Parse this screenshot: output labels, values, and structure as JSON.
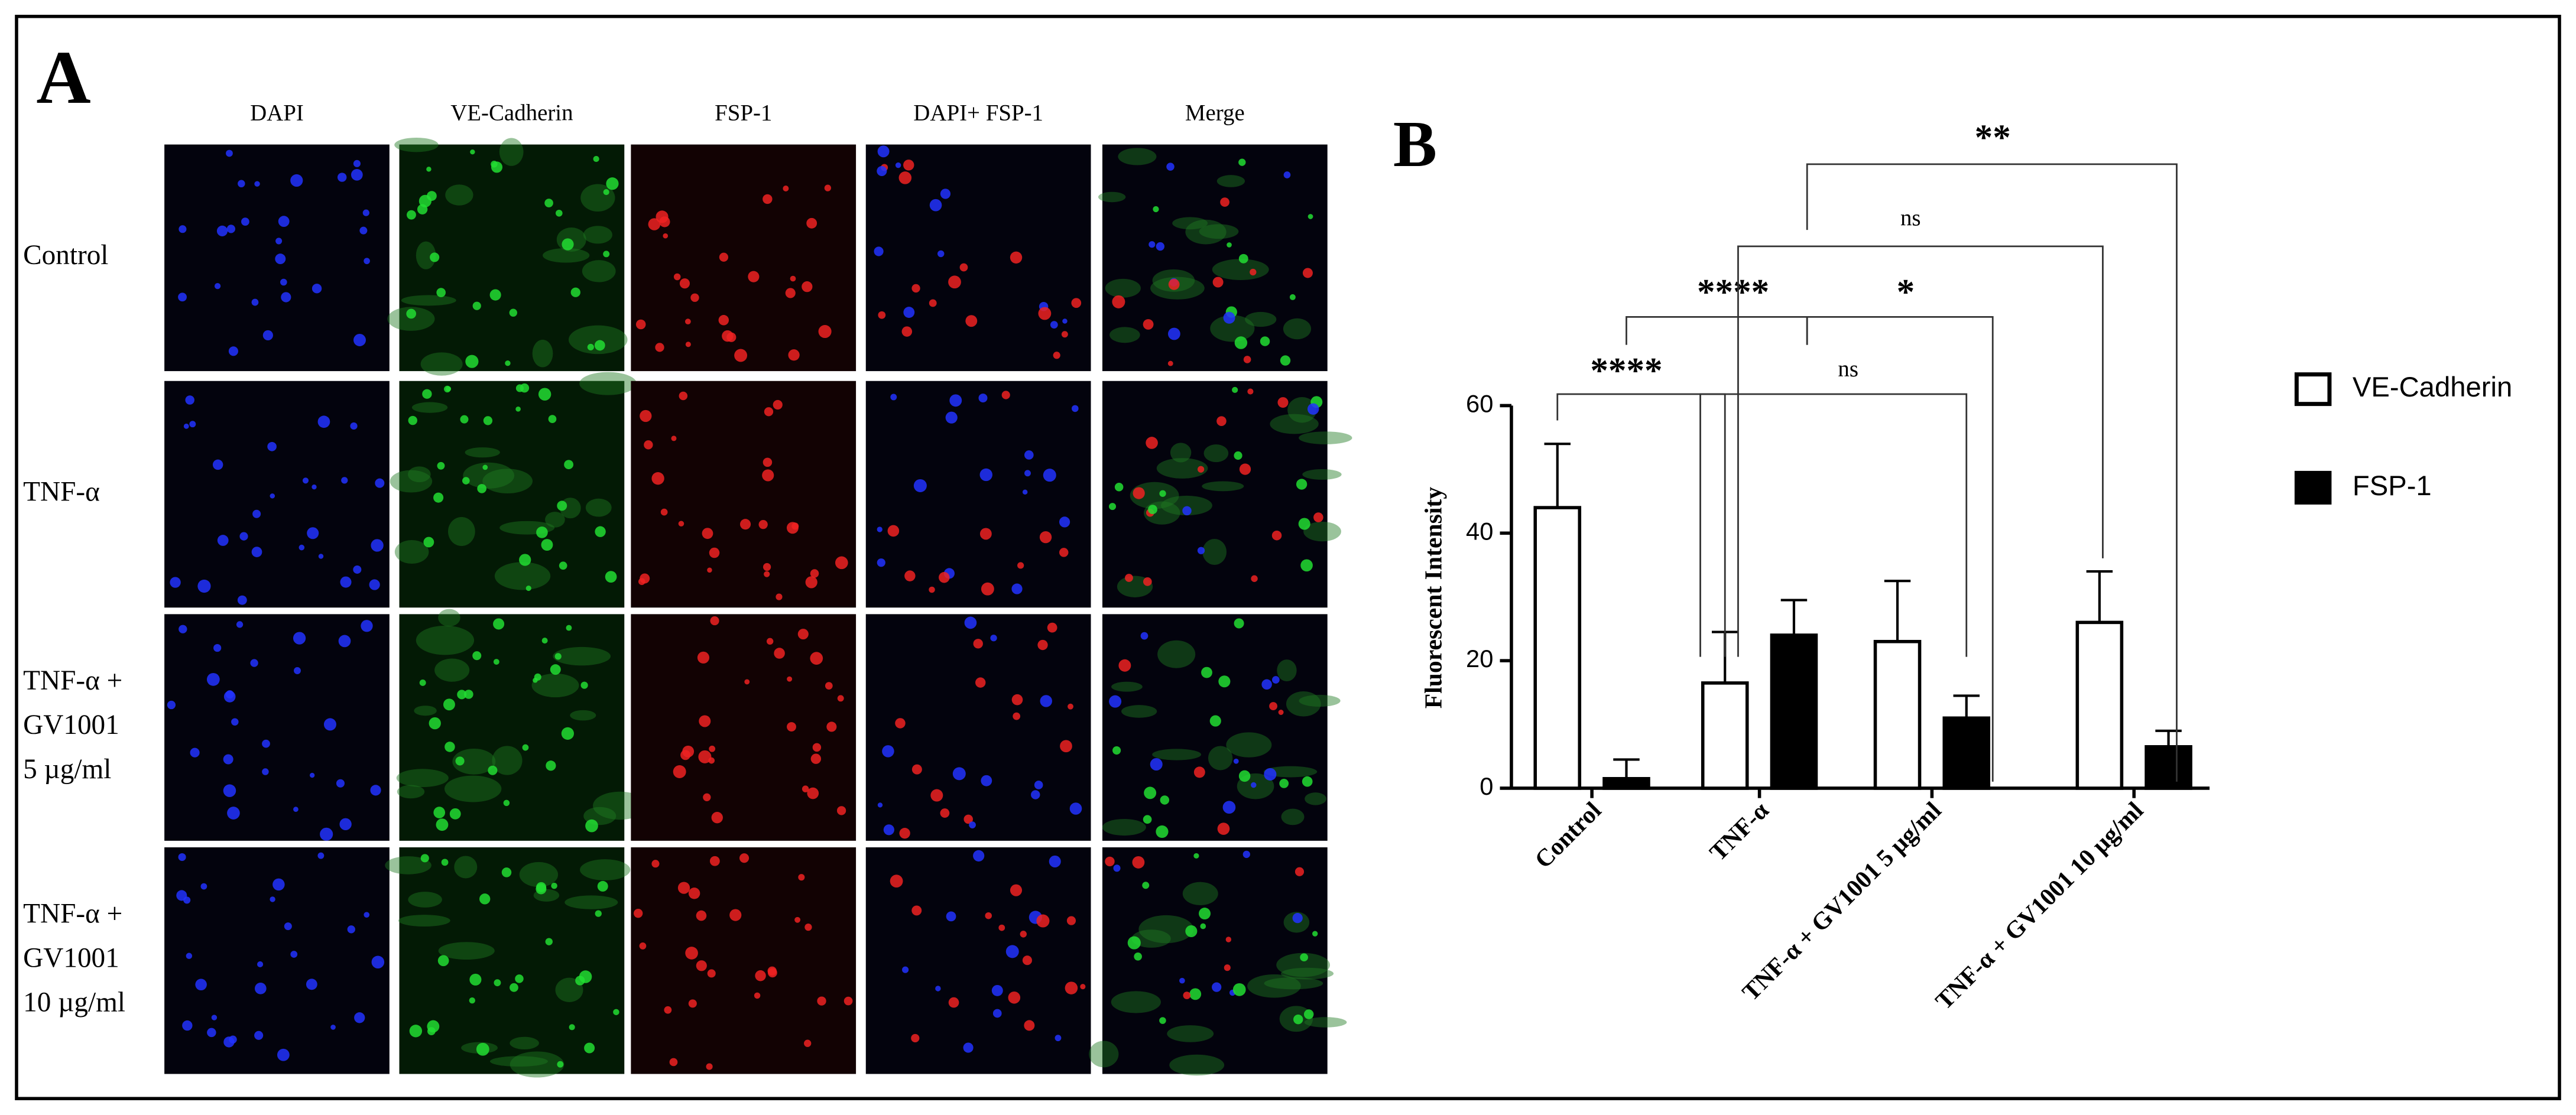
{
  "panel_a": {
    "label": "A",
    "columns": [
      "DAPI",
      "VE-Cadherin",
      "FSP-1",
      "DAPI+ FSP-1",
      "Merge"
    ],
    "rows": [
      [
        "Control"
      ],
      [
        "TNF-α"
      ],
      [
        "TNF-α +",
        "GV1001",
        "5 µg/ml"
      ],
      [
        "TNF-α +",
        "GV1001",
        "10 µg/ml"
      ]
    ]
  },
  "chart_data": {
    "type": "bar",
    "panel_label": "B",
    "y_label": "Fluorescent Intensity",
    "categories": [
      "Control",
      "TNF-α",
      "TNF-α + GV1001 5 µg/ml",
      "TNF-α + GV1001 10 µg/ml"
    ],
    "series": [
      {
        "name": "VE-Cadherin",
        "color": "#ffffff",
        "values": [
          44,
          16.5,
          23,
          26
        ],
        "errors": [
          10,
          8,
          9.5,
          8
        ]
      },
      {
        "name": "FSP-1",
        "color": "#000000",
        "values": [
          1.5,
          24,
          11,
          6.5
        ],
        "errors": [
          3,
          5.5,
          3.5,
          2.5
        ]
      }
    ],
    "ylim": [
      0,
      60
    ],
    "yticks": [
      0,
      20,
      40,
      60
    ],
    "annotations": [
      "****",
      "ns",
      "****",
      "*",
      "ns",
      "**"
    ],
    "legend": "right"
  }
}
